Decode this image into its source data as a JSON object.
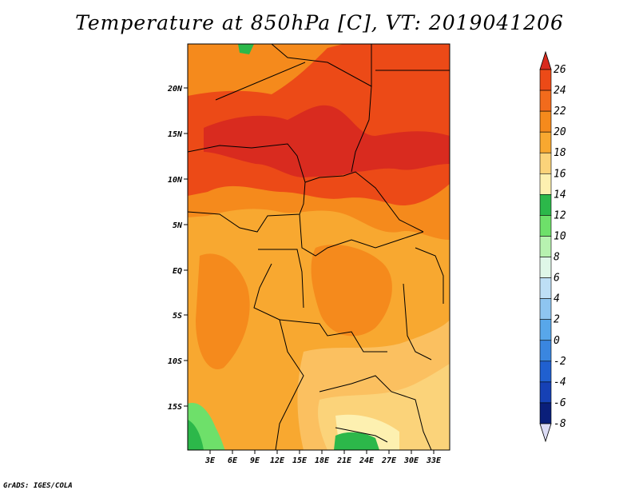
{
  "title": "Temperature at 850hPa [C], VT: 2019041206",
  "credit": "GrADS: IGES/COLA",
  "map": {
    "lon_ticks": [
      "3E",
      "6E",
      "9E",
      "12E",
      "15E",
      "18E",
      "21E",
      "24E",
      "27E",
      "30E",
      "33E"
    ],
    "lat_ticks": [
      "20N",
      "15N",
      "10N",
      "5N",
      "EQ",
      "5S",
      "10S",
      "15S"
    ]
  },
  "colorbar": {
    "labels": [
      "26",
      "24",
      "22",
      "20",
      "18",
      "16",
      "14",
      "12",
      "10",
      "8",
      "6",
      "4",
      "2",
      "0",
      "-2",
      "-4",
      "-6",
      "-8"
    ],
    "colors": [
      "#d92b1f",
      "#ec4a17",
      "#f26b1c",
      "#f58a1c",
      "#f8a830",
      "#fbd37a",
      "#fdf0b0",
      "#2cb84a",
      "#6ee06a",
      "#b7f2b0",
      "#dff7e8",
      "#bedff5",
      "#8ec5f0",
      "#58a7ea",
      "#3a86df",
      "#2060d0",
      "#1641b5",
      "#0a1f7a"
    ]
  }
}
